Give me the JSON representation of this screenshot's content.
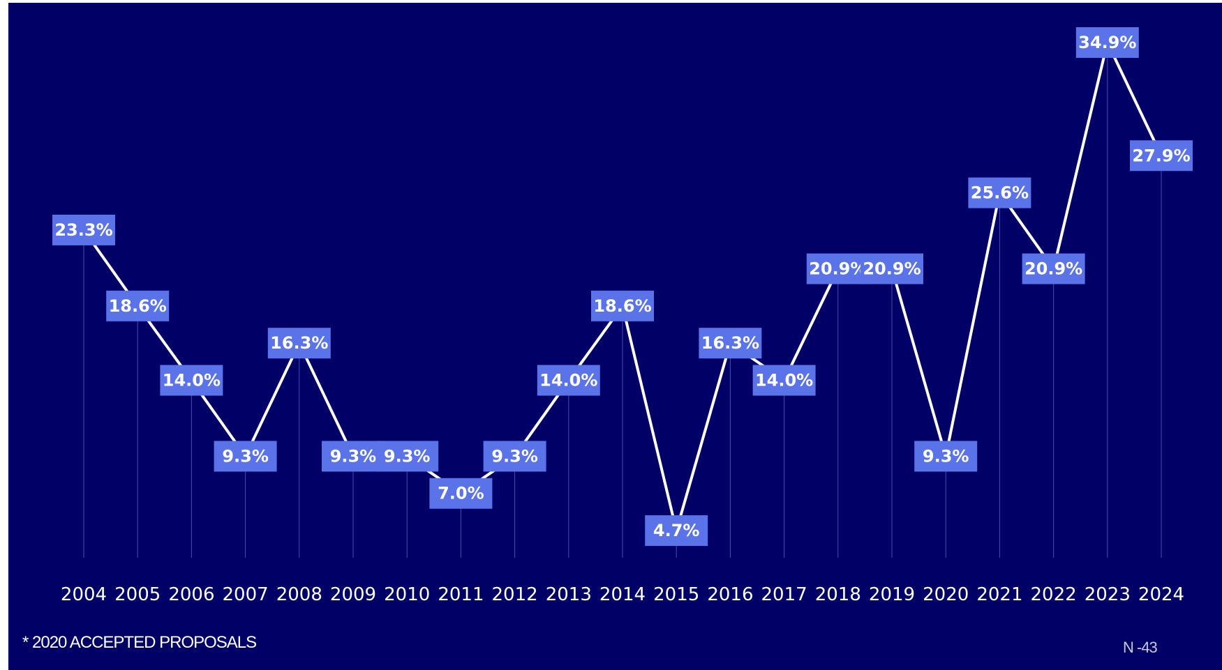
{
  "chart_data": {
    "type": "line",
    "x": [
      "2004",
      "2005",
      "2006",
      "2007",
      "2008",
      "2009",
      "2010",
      "2011",
      "2012",
      "2013",
      "2014",
      "2015",
      "2016",
      "2017",
      "2018",
      "2019",
      "2020",
      "2021",
      "2022",
      "2023",
      "2024"
    ],
    "values": [
      23.3,
      18.6,
      14.0,
      9.3,
      16.3,
      9.3,
      9.3,
      7.0,
      9.3,
      14.0,
      18.6,
      4.7,
      16.3,
      14.0,
      20.9,
      20.9,
      9.3,
      25.6,
      20.9,
      34.9,
      27.9
    ],
    "data_labels": [
      "23.3%",
      "18.6%",
      "14.0%",
      "9.3%",
      "16.3%",
      "9.3%",
      "9.3%",
      "7.0%",
      "9.3%",
      "14.0%",
      "18.6%",
      "4.7%",
      "16.3%",
      "14.0%",
      "20.9%",
      "20.9%",
      "9.3%",
      "25.6%",
      "20.9%",
      "34.9%",
      "27.9%"
    ],
    "unit": "%",
    "grid": false,
    "legend": "none",
    "colors": {
      "background": "#000066",
      "line": "#ffffff",
      "label_box": "#5b73e8",
      "label_text": "#ffffff",
      "drop_line": "#4a4ab0"
    }
  },
  "footnote": "* 2020 ACCEPTED PROPOSALS",
  "sample_size": "N -43"
}
